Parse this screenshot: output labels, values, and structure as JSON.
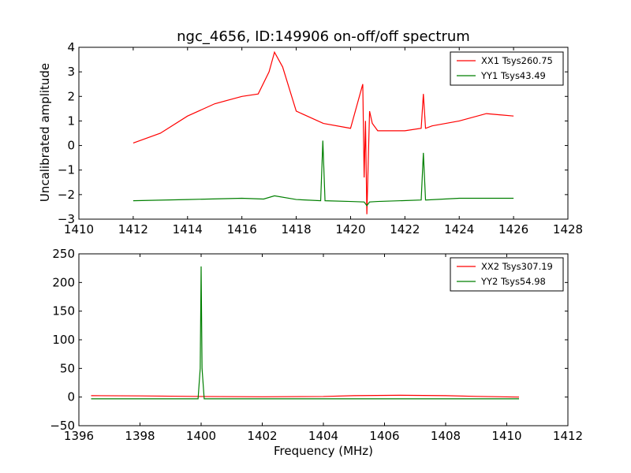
{
  "figure": {
    "title": "ngc_4656, ID:149906 on-off/off spectrum",
    "ylabel": "Uncalibrated amplitude",
    "xlabel": "Frequency (MHz)"
  },
  "colors": {
    "xx": "#ff0000",
    "yy": "#007f00",
    "frame": "#000000"
  },
  "chart_data": [
    {
      "type": "line",
      "panel": "top",
      "xlim": [
        1410,
        1428
      ],
      "ylim": [
        -3,
        4
      ],
      "xticks": [
        "1410",
        "1412",
        "1414",
        "1416",
        "1418",
        "1420",
        "1422",
        "1424",
        "1426",
        "1428"
      ],
      "yticks": [
        "−3",
        "−2",
        "−1",
        "0",
        "1",
        "2",
        "3",
        "4"
      ],
      "legend": "top-right",
      "series": [
        {
          "name": "XX1 Tsys260.75",
          "color": "#ff0000",
          "x": [
            1412,
            1413,
            1414,
            1415,
            1416,
            1416.6,
            1417.0,
            1417.2,
            1417.5,
            1418.0,
            1419.0,
            1420.0,
            1420.45,
            1420.5,
            1420.55,
            1420.6,
            1420.7,
            1420.8,
            1421.0,
            1422.0,
            1422.6,
            1422.68,
            1422.76,
            1423.0,
            1424.0,
            1425.0,
            1426.0
          ],
          "y": [
            0.1,
            0.5,
            1.2,
            1.7,
            2.0,
            2.1,
            3.0,
            3.8,
            3.2,
            1.4,
            0.9,
            0.7,
            2.5,
            -1.3,
            1.0,
            -2.8,
            1.4,
            0.9,
            0.6,
            0.6,
            0.7,
            2.1,
            0.7,
            0.8,
            1.0,
            1.3,
            1.2
          ]
        },
        {
          "name": "YY1 Tsys43.49",
          "color": "#007f00",
          "x": [
            1412,
            1414,
            1416,
            1416.8,
            1417.2,
            1418.0,
            1418.9,
            1418.98,
            1419.06,
            1420.0,
            1420.5,
            1420.6,
            1420.7,
            1421.0,
            1422.6,
            1422.68,
            1422.76,
            1424.0,
            1426.0
          ],
          "y": [
            -2.25,
            -2.2,
            -2.15,
            -2.18,
            -2.05,
            -2.2,
            -2.25,
            0.2,
            -2.25,
            -2.28,
            -2.3,
            -2.45,
            -2.3,
            -2.28,
            -2.22,
            -0.3,
            -2.22,
            -2.15,
            -2.15
          ]
        }
      ]
    },
    {
      "type": "line",
      "panel": "bottom",
      "xlim": [
        1396,
        1412
      ],
      "ylim": [
        -50,
        250
      ],
      "xticks": [
        "1396",
        "1398",
        "1400",
        "1402",
        "1404",
        "1406",
        "1408",
        "1410",
        "1412"
      ],
      "yticks": [
        "−50",
        "0",
        "50",
        "100",
        "150",
        "200",
        "250"
      ],
      "legend": "top-right",
      "series": [
        {
          "name": "XX2 Tsys307.19",
          "color": "#ff0000",
          "x": [
            1396.4,
            1398,
            1400,
            1402,
            1404,
            1405,
            1406.5,
            1408,
            1409,
            1410.4
          ],
          "y": [
            2.5,
            2.0,
            1.0,
            0.5,
            1.0,
            2.5,
            3.2,
            2.5,
            1.2,
            0.0
          ]
        },
        {
          "name": "YY2 Tsys54.98",
          "color": "#007f00",
          "x": [
            1396.4,
            1398,
            1399.9,
            1399.97,
            1400.0,
            1400.03,
            1400.1,
            1402,
            1404,
            1406,
            1408,
            1410.4
          ],
          "y": [
            -3.0,
            -3.0,
            -3.0,
            50,
            228,
            50,
            -3.0,
            -3.0,
            -3.0,
            -3.0,
            -3.0,
            -3.0
          ]
        }
      ]
    }
  ]
}
